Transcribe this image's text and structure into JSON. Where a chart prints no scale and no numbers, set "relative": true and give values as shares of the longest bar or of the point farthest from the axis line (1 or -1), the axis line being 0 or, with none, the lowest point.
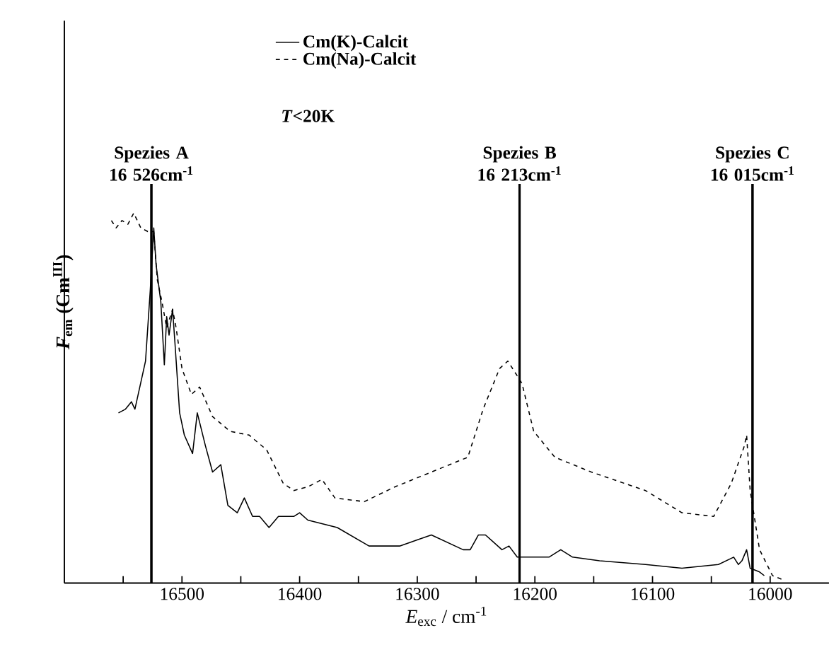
{
  "chart_data": {
    "type": "line",
    "relative": true,
    "xlabel": "*E*$_{exc}$ / cm$^{-1}$",
    "ylabel": "*F*$_{em}$ (Cm$^{III}$)",
    "xlim": [
      16600,
      15950
    ],
    "xticks": [
      {
        "value": 16550,
        "label": null
      },
      16500,
      {
        "value": 16450,
        "label": null
      },
      16400,
      {
        "value": 16350,
        "label": null
      },
      16300,
      {
        "value": 16250,
        "label": null
      },
      16200,
      {
        "value": 16150,
        "label": null
      },
      16100,
      {
        "value": 16050,
        "label": null
      },
      16000
    ],
    "legend": "top left",
    "grid": false,
    "series": [
      {
        "name": "Cm(K)-Calcit",
        "color": "#000000",
        "line_style": "solid",
        "x": [
          16554,
          16548,
          16543,
          16540,
          16531,
          16527,
          16524,
          16522,
          16518,
          16515,
          16513,
          16511,
          16508,
          16506,
          16502,
          16498,
          16491,
          16487,
          16480,
          16474,
          16467,
          16461,
          16453,
          16447,
          16440,
          16434,
          16426,
          16418,
          16405,
          16400,
          16393,
          16368,
          16341,
          16315,
          16288,
          16261,
          16255,
          16248,
          16242,
          16228,
          16222,
          16215,
          16188,
          16178,
          16168,
          16145,
          16106,
          16075,
          16044,
          16031,
          16027,
          16024,
          16020,
          16017,
          16009,
          16005
        ],
        "values": [
          0.46,
          0.47,
          0.49,
          0.47,
          0.6,
          0.79,
          0.96,
          0.86,
          0.76,
          0.59,
          0.72,
          0.67,
          0.74,
          0.65,
          0.46,
          0.4,
          0.35,
          0.46,
          0.37,
          0.3,
          0.32,
          0.21,
          0.19,
          0.23,
          0.18,
          0.18,
          0.15,
          0.18,
          0.18,
          0.19,
          0.17,
          0.15,
          0.1,
          0.1,
          0.13,
          0.09,
          0.09,
          0.13,
          0.13,
          0.09,
          0.1,
          0.07,
          0.07,
          0.09,
          0.07,
          0.06,
          0.05,
          0.04,
          0.05,
          0.07,
          0.05,
          0.06,
          0.09,
          0.04,
          0.03,
          0.02
        ]
      },
      {
        "name": "Cm(Na)-Calcit",
        "color": "#000000",
        "line_style": "dashed",
        "x": [
          16560,
          16556,
          16551,
          16546,
          16541,
          16535,
          16529,
          16524,
          16521,
          16517,
          16513,
          16508,
          16505,
          16500,
          16492,
          16485,
          16474,
          16459,
          16443,
          16428,
          16414,
          16405,
          16393,
          16381,
          16370,
          16345,
          16319,
          16288,
          16257,
          16244,
          16230,
          16223,
          16211,
          16201,
          16183,
          16152,
          16106,
          16075,
          16048,
          16033,
          16022,
          16020,
          16017,
          16009,
          15998,
          15990
        ],
        "values": [
          0.98,
          0.96,
          0.98,
          0.97,
          1,
          0.96,
          0.95,
          0.95,
          0.82,
          0.76,
          0.69,
          0.74,
          0.69,
          0.58,
          0.51,
          0.53,
          0.45,
          0.41,
          0.4,
          0.36,
          0.27,
          0.25,
          0.26,
          0.28,
          0.23,
          0.22,
          0.26,
          0.3,
          0.34,
          0.47,
          0.58,
          0.6,
          0.54,
          0.41,
          0.34,
          0.3,
          0.25,
          0.19,
          0.18,
          0.27,
          0.37,
          0.4,
          0.25,
          0.09,
          0.02,
          0.01
        ]
      }
    ],
    "ref_lines": [
      {
        "axis": "x",
        "value": 16526,
        "label": "Spezies A 16 526cm$^{-1}$",
        "color": "#000000"
      },
      {
        "axis": "x",
        "value": 16213,
        "label": "Spezies B 16 213cm$^{-1}$",
        "color": "#000000"
      },
      {
        "axis": "x",
        "value": 16015,
        "label": "Spezies C 16 015cm$^{-1}$",
        "color": "#000000"
      }
    ],
    "annotations": [
      "*T*<20K"
    ]
  }
}
